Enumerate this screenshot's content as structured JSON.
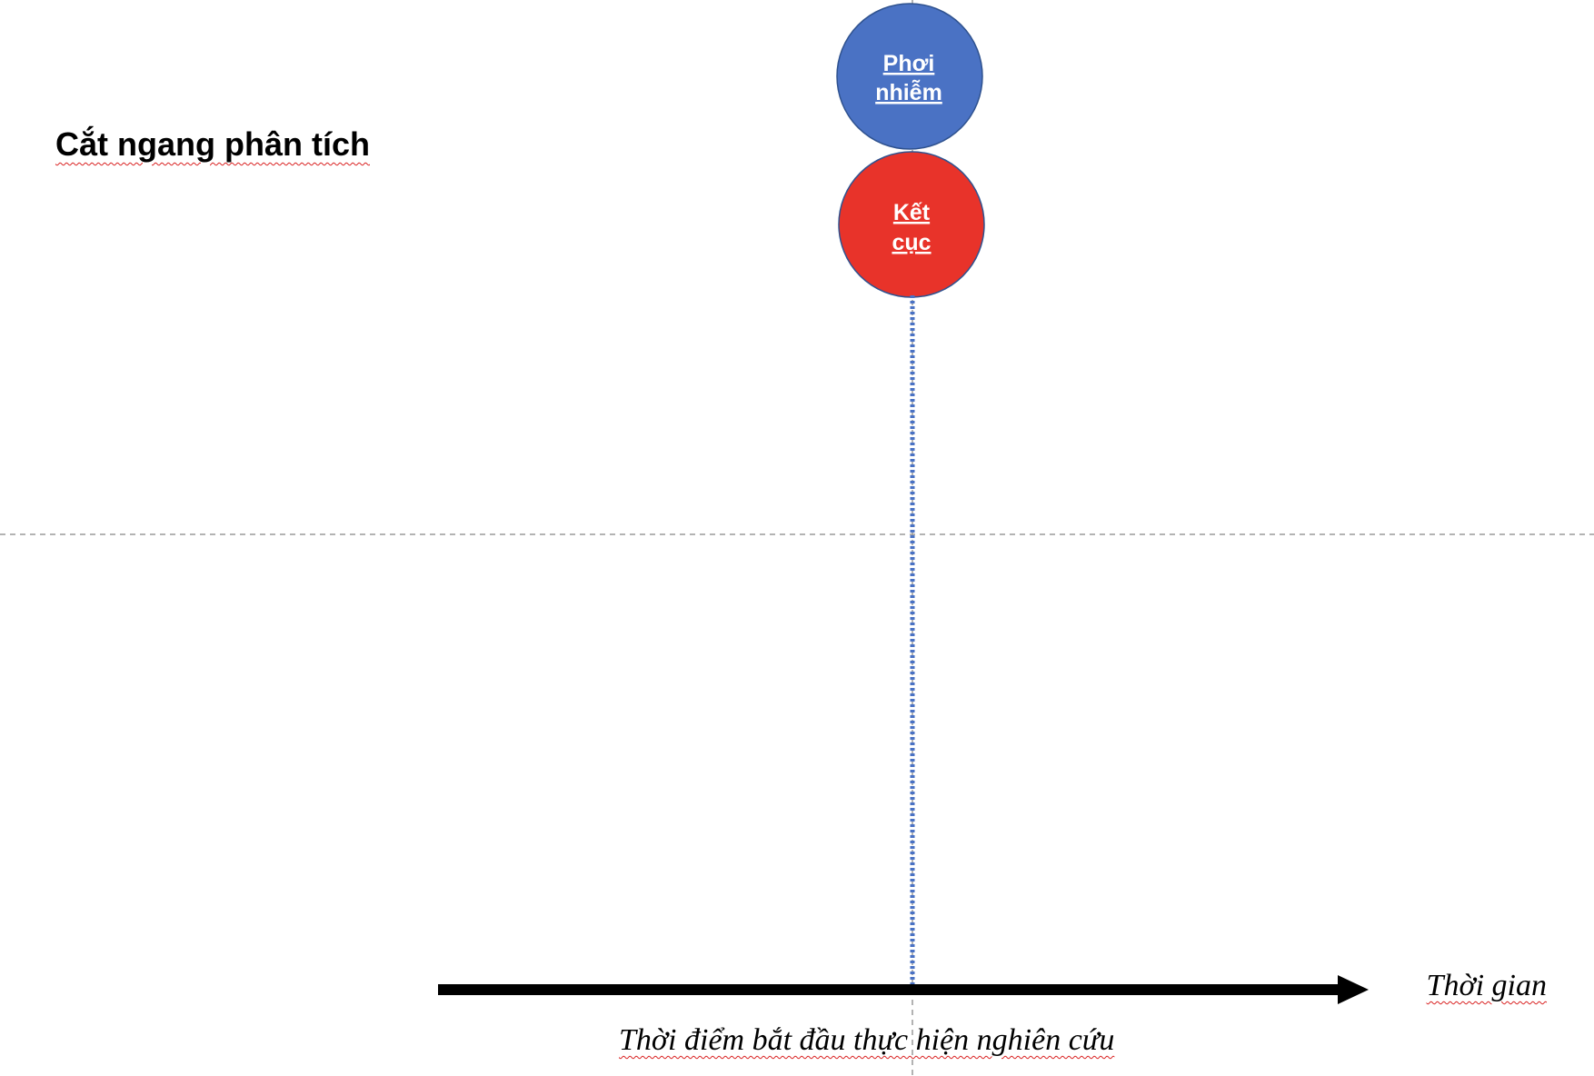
{
  "title": "Cắt ngang phân tích",
  "exposure": {
    "line1": "Phơi",
    "line2": "nhiễm",
    "color": "#4a72c4"
  },
  "outcome": {
    "line1": "Kết",
    "line2": "cục",
    "color": "#e8332a"
  },
  "axis_label": "Thời gian",
  "start_label": "Thời điểm bắt đầu thực hiện nghiên cứu",
  "colors": {
    "timeline": "#000000",
    "study_start_line": "#4a72c4",
    "guide_lines": "#9a9a9a",
    "spellcheck_underline": "#d92020"
  }
}
